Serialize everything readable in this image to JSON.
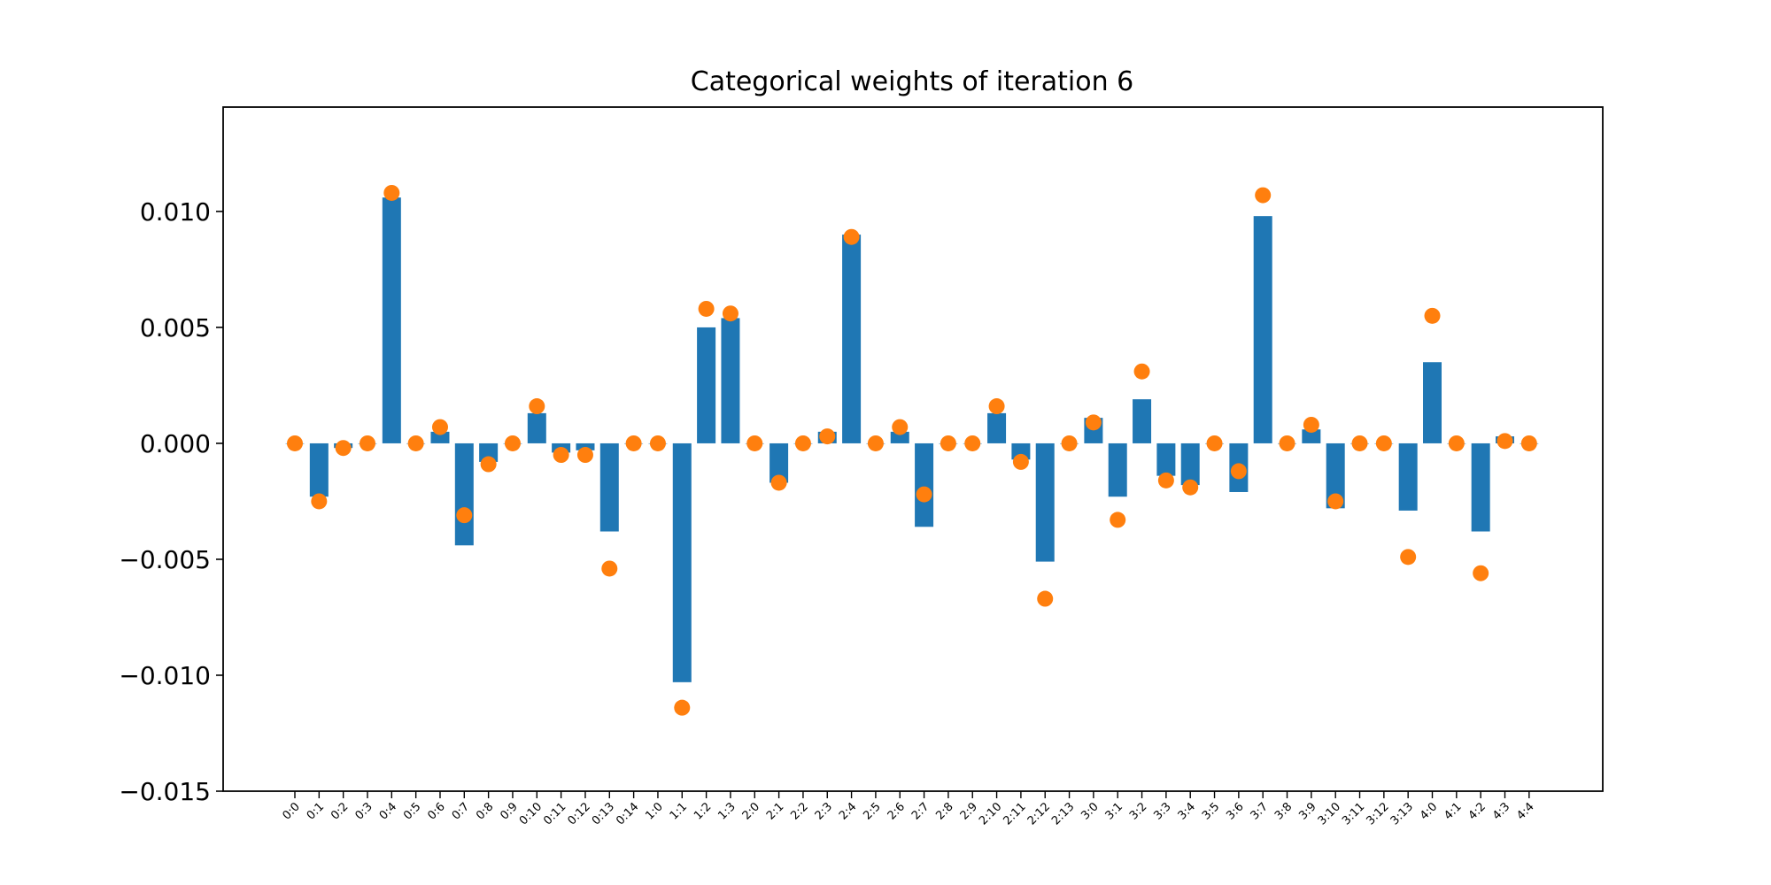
{
  "chart_data": {
    "type": "bar",
    "title": "Categorical weights of iteration 6",
    "xlabel": "",
    "ylabel": "",
    "ylim": [
      -0.015,
      0.0145
    ],
    "yticks": [
      {
        "value": 0.01,
        "label": "0.010"
      },
      {
        "value": 0.005,
        "label": "0.005"
      },
      {
        "value": 0.0,
        "label": "0.000"
      },
      {
        "value": -0.005,
        "label": "−0.005"
      },
      {
        "value": -0.01,
        "label": "−0.010"
      },
      {
        "value": -0.015,
        "label": "−0.015"
      }
    ],
    "categories": [
      "0:0",
      "0:1",
      "0:2",
      "0:3",
      "0:4",
      "0:5",
      "0:6",
      "0:7",
      "0:8",
      "0:9",
      "0:10",
      "0:11",
      "0:12",
      "0:13",
      "0:14",
      "1:0",
      "1:1",
      "1:2",
      "1:3",
      "2:0",
      "2:1",
      "2:2",
      "2:3",
      "2:4",
      "2:5",
      "2:6",
      "2:7",
      "2:8",
      "2:9",
      "2:10",
      "2:11",
      "2:12",
      "2:13",
      "3:0",
      "3:1",
      "3:2",
      "3:3",
      "3:4",
      "3:5",
      "3:6",
      "3:7",
      "3:8",
      "3:9",
      "3:10",
      "3:11",
      "3:12",
      "3:13",
      "4:0",
      "4:1",
      "4:2",
      "4:3",
      "4:4"
    ],
    "series": [
      {
        "kind": "bar",
        "color": "#1f77b4",
        "values": [
          0,
          -0.0023,
          -0.0002,
          0,
          0.0106,
          0,
          0.0005,
          -0.0044,
          -0.0008,
          0,
          0.0013,
          -0.0004,
          -0.0003,
          -0.0038,
          0,
          0,
          -0.0103,
          0.005,
          0.0054,
          0,
          -0.0017,
          0,
          0.0005,
          0.009,
          0,
          0.0005,
          -0.0036,
          0,
          0,
          0.0013,
          -0.0007,
          -0.0051,
          0,
          0.0011,
          -0.0023,
          0.0019,
          -0.0014,
          -0.0018,
          0,
          -0.0021,
          0.0098,
          0,
          0.0006,
          -0.0028,
          0,
          0,
          -0.0029,
          0.0035,
          0,
          -0.0038,
          0.0003,
          0
        ]
      },
      {
        "kind": "scatter",
        "color": "#ff7f0e",
        "values": [
          0,
          -0.0025,
          -0.0002,
          0,
          0.0108,
          0,
          0.0007,
          -0.0031,
          -0.0009,
          0,
          0.0016,
          -0.0005,
          -0.0005,
          -0.0054,
          0,
          0,
          -0.0114,
          0.0058,
          0.0056,
          0,
          -0.0017,
          0,
          0.0003,
          0.0089,
          0,
          0.0007,
          -0.0022,
          0,
          0,
          0.0016,
          -0.0008,
          -0.0067,
          0,
          0.0009,
          -0.0033,
          0.0031,
          -0.0016,
          -0.0019,
          0,
          -0.0012,
          0.0107,
          0,
          0.0008,
          -0.0025,
          0,
          0,
          -0.0049,
          0.0055,
          0,
          -0.0056,
          0.0001,
          0
        ]
      }
    ],
    "grid": false,
    "legend": "none"
  }
}
